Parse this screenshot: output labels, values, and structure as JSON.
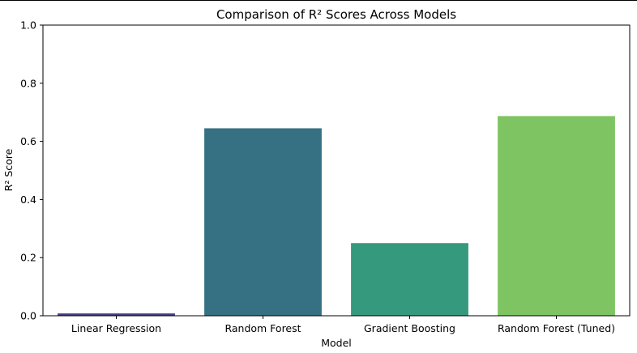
{
  "chart_data": {
    "type": "bar",
    "title": "Comparison of R² Scores Across Models",
    "xlabel": "Model",
    "ylabel": "R² Score",
    "categories": [
      "Linear Regression",
      "Random Forest",
      "Gradient Boosting",
      "Random Forest (Tuned)"
    ],
    "values": [
      0.008,
      0.645,
      0.25,
      0.687
    ],
    "colors": [
      "#433e85",
      "#357182",
      "#35997e",
      "#7fc463"
    ],
    "ylim": [
      0,
      1.0
    ],
    "yticks": [
      0.0,
      0.2,
      0.4,
      0.6,
      0.8,
      1.0
    ],
    "ytick_labels": [
      "0.0",
      "0.2",
      "0.4",
      "0.6",
      "0.8",
      "1.0"
    ],
    "grid": false,
    "legend": false
  }
}
